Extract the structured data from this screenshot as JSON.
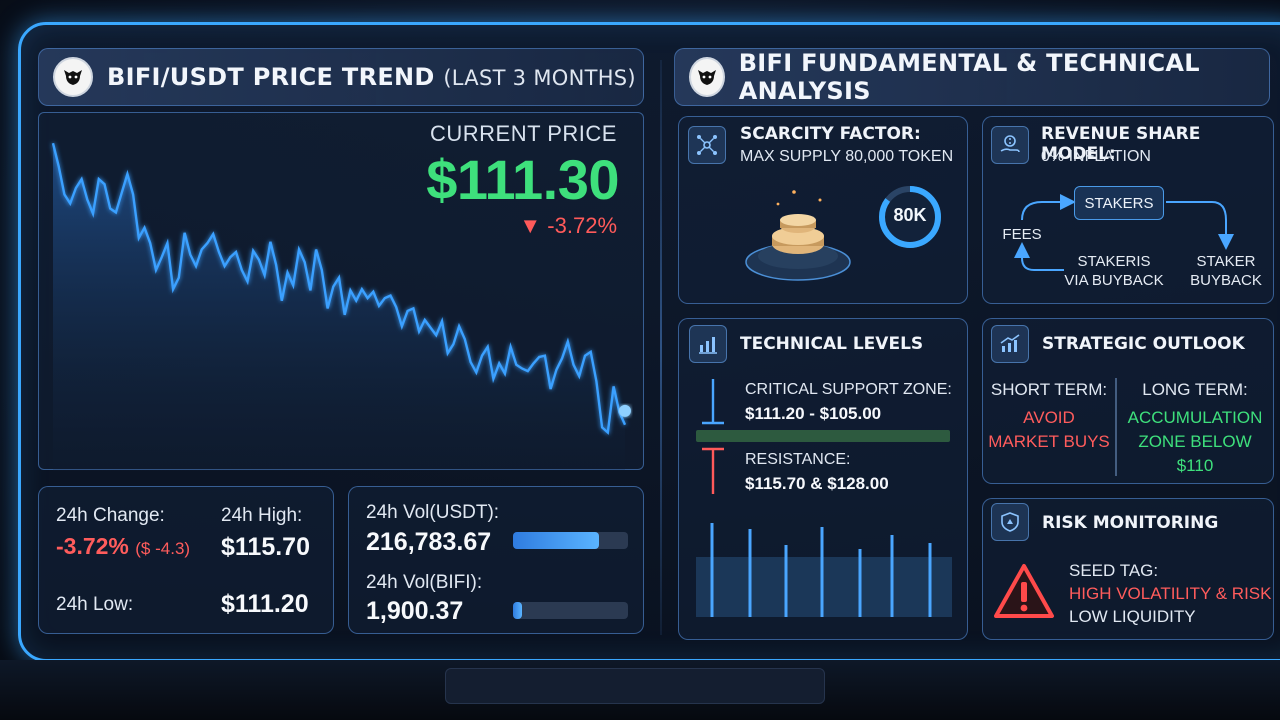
{
  "left_header": {
    "title": "BIFI/USDT PRICE TREND",
    "subtitle": "(LAST 3 MONTHS)"
  },
  "right_header": {
    "title": "BIFI FUNDAMENTAL & TECHNICAL ANALYSIS"
  },
  "price": {
    "label": "CURRENT PRICE",
    "value": "$111.30",
    "change": "▼ -3.72%"
  },
  "chart_data": {
    "type": "area",
    "title": "",
    "y": [
      158,
      176,
      198,
      205,
      193,
      186,
      202,
      213,
      186,
      190,
      209,
      212,
      197,
      182,
      198,
      232,
      224,
      236,
      257,
      247,
      236,
      272,
      263,
      228,
      245,
      254,
      241,
      236,
      229,
      243,
      254,
      247,
      243,
      257,
      266,
      242,
      249,
      261,
      235,
      253,
      281,
      259,
      269,
      241,
      251,
      273,
      241,
      257,
      287,
      270,
      263,
      292,
      273,
      281,
      272,
      279,
      274,
      285,
      279,
      277,
      286,
      301,
      289,
      287,
      305,
      296,
      302,
      308,
      297,
      322,
      315,
      301,
      311,
      329,
      337,
      324,
      317,
      342,
      330,
      338,
      317,
      331,
      334,
      336,
      330,
      325,
      324,
      350,
      335,
      326,
      313,
      331,
      340,
      324,
      321,
      344,
      380,
      384,
      348,
      368,
      378
    ],
    "color": "#3aa0ff"
  },
  "stats": {
    "change_label": "24h Change:",
    "change_value": "-3.72%",
    "change_abs": "($ -4.3)",
    "high_label": "24h High:",
    "high_value": "$115.70",
    "low_label": "24h Low:",
    "low_value": "$111.20"
  },
  "volume": {
    "usdt_label": "24h Vol(USDT):",
    "usdt_value": "216,783.67",
    "usdt_fill": 0.75,
    "bifi_label": "24h Vol(BIFI):",
    "bifi_value": "1,900.37",
    "bifi_fill": 0.08
  },
  "scarcity": {
    "title": "SCARCITY FACTOR:",
    "text": "MAX SUPPLY 80,000 TOKEN",
    "badge": "80K"
  },
  "revenue": {
    "title": "REVENUE SHARE MODEL:",
    "text": "0% INFLATION",
    "stakers": "STAKERS",
    "fees": "FEES",
    "stakeris_line1": "STAKERIS",
    "stakeris_line2": "VIA BUYBACK",
    "staker_line1": "STAKER",
    "staker_line2": "BUYBACK"
  },
  "technical": {
    "title": "TECHNICAL LEVELS",
    "support_label": "CRITICAL SUPPORT ZONE:",
    "support_value": "$111.20 - $105.00",
    "resistance_label": "RESISTANCE:",
    "resistance_value": "$115.70 & $128.00"
  },
  "outlook": {
    "title": "STRATEGIC OUTLOOK",
    "short_label": "SHORT TERM:",
    "short_line1": "AVOID",
    "short_line2": "MARKET BUYS",
    "long_label": "LONG TERM:",
    "long_line1": "ACCUMULATION",
    "long_line2": "ZONE BELOW $110"
  },
  "risk": {
    "title": "RISK MONITORING",
    "seed": "SEED TAG:",
    "high": "HIGH VOLATILITY & RISK",
    "low": "LOW LIQUIDITY"
  },
  "colors": {
    "accent": "#3aa8ff",
    "positive": "#3ee07c",
    "negative": "#ff5a5a"
  }
}
